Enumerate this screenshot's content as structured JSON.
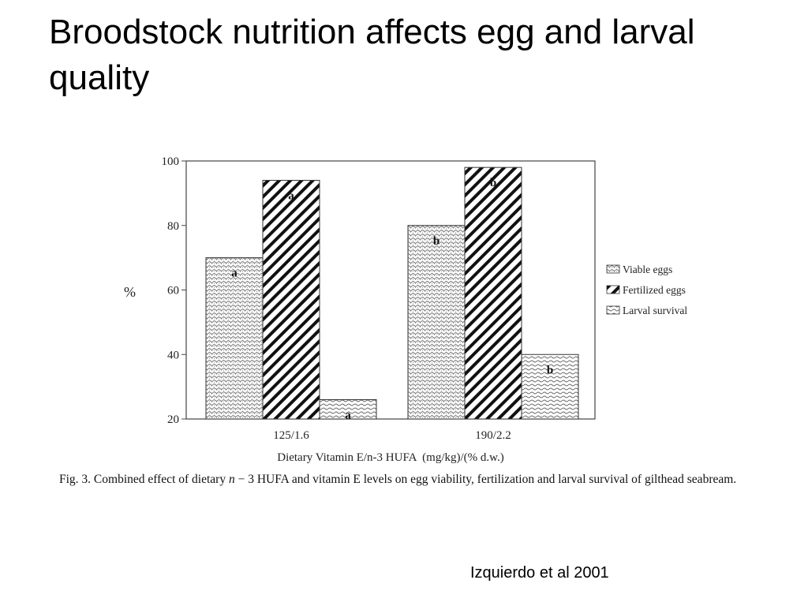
{
  "slide": {
    "title": "Broodstock nutrition affects egg and larval quality",
    "citation": "Izquierdo et al 2001"
  },
  "caption": {
    "prefix": "Fig. 3. Combined effect of dietary ",
    "italic": "n",
    "rest": " − 3 HUFA and vitamin E levels on egg viability, fertilization and larval survival of gilthead seabream."
  },
  "chart_data": {
    "type": "bar",
    "categories": [
      "125/1.6",
      "190/2.2"
    ],
    "series": [
      {
        "name": "Viable eggs",
        "values": [
          70,
          80
        ],
        "labels": [
          "a",
          "b"
        ],
        "pattern": "dots"
      },
      {
        "name": "Fertilized eggs",
        "values": [
          94,
          98
        ],
        "labels": [
          "a",
          "b"
        ],
        "pattern": "diag"
      },
      {
        "name": "Larval survival",
        "values": [
          26,
          40
        ],
        "labels": [
          "a",
          "b"
        ],
        "pattern": "wave"
      }
    ],
    "xlabel": "Dietary Vitamin E/n-3 HUFA  (mg/kg)/(% d.w.)",
    "ylabel": "%",
    "ylim": [
      20,
      100
    ],
    "yticks": [
      20,
      40,
      60,
      80,
      100
    ],
    "legend_position": "right",
    "grid": false
  }
}
